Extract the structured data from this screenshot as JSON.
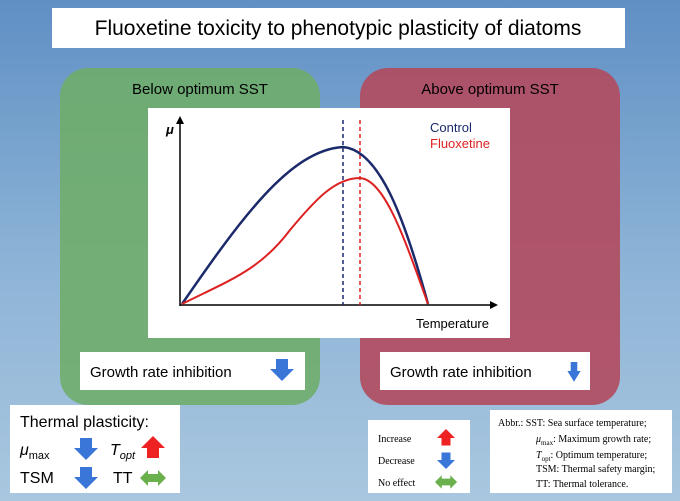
{
  "title": "Fluoxetine toxicity to phenotypic plasticity of diatoms",
  "panels": [
    {
      "heading": "Below optimum SST",
      "effect": "Growth rate inhibition"
    },
    {
      "heading": "Above optimum SST",
      "effect": "Growth rate inhibition"
    }
  ],
  "chart": {
    "y_label": "μ",
    "x_label": "Temperature",
    "legend": [
      "Control",
      "Fluoxetine"
    ]
  },
  "thermal_plasticity": {
    "title": "Thermal plasticity:",
    "items": [
      {
        "symbol": "μ",
        "sub": "max"
      },
      {
        "symbol": "T",
        "sub": "opt"
      },
      {
        "symbol": "TSM"
      },
      {
        "symbol": "TT"
      }
    ]
  },
  "key": [
    "Increase",
    "Decrease",
    "No effect"
  ],
  "abbreviations": [
    {
      "text": "Abbr.: SST: Sea surface temperature;"
    },
    {
      "symbol": "μ",
      "sub": "max",
      "text": ": Maximum growth rate;"
    },
    {
      "symbol": "T",
      "sub": "opt",
      "text": ": Optimum temperature;"
    },
    {
      "text": "TSM: Thermal safety margin;"
    },
    {
      "text": "TT: Thermal tolerance."
    }
  ]
}
